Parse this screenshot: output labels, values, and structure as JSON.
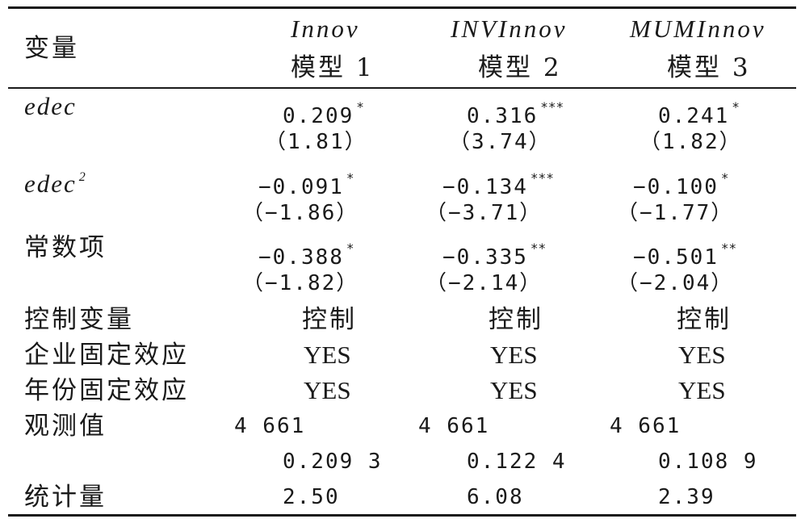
{
  "table": {
    "header": {
      "variable_label": "变量",
      "columns": [
        {
          "dep_var": "Innov",
          "model": "模型 1"
        },
        {
          "dep_var": "INVInnov",
          "model": "模型 2"
        },
        {
          "dep_var": "MUMInnov",
          "model": "模型 3"
        }
      ]
    },
    "rows": {
      "edec": {
        "label": "edec",
        "values": [
          "0.209",
          "0.316",
          "0.241"
        ],
        "stars": [
          "*",
          "***",
          "*"
        ],
        "t": [
          "（1.81）",
          "（3.74）",
          "（1.82）"
        ]
      },
      "edec2": {
        "label": "edec",
        "label_sup": "2",
        "values": [
          "−0.091",
          "−0.134",
          "−0.100"
        ],
        "stars": [
          "*",
          "***",
          "*"
        ],
        "t": [
          "（−1.86）",
          "（−3.71）",
          "（−1.77）"
        ]
      },
      "constant": {
        "label": "常数项",
        "values": [
          "−0.388",
          "−0.335",
          "−0.501"
        ],
        "stars": [
          "*",
          "**",
          "**"
        ],
        "t": [
          "（−1.82）",
          "（−2.14）",
          "（−2.04）"
        ]
      },
      "controls": {
        "label": "控制变量",
        "values": [
          "控制",
          "控制",
          "控制"
        ]
      },
      "firm_fe": {
        "label": "企业固定效应",
        "values": [
          "YES",
          "YES",
          "YES"
        ]
      },
      "year_fe": {
        "label": "年份固定效应",
        "values": [
          "YES",
          "YES",
          "YES"
        ]
      },
      "obs": {
        "label": "观测值",
        "values": [
          "4 661",
          "4 661",
          "4 661"
        ]
      },
      "r2": {
        "label": "",
        "values": [
          "0.209 3",
          "0.122 4",
          "0.108 9"
        ]
      },
      "stat": {
        "label": "统计量",
        "values": [
          "2.50",
          "6.08",
          "2.39"
        ]
      }
    }
  }
}
